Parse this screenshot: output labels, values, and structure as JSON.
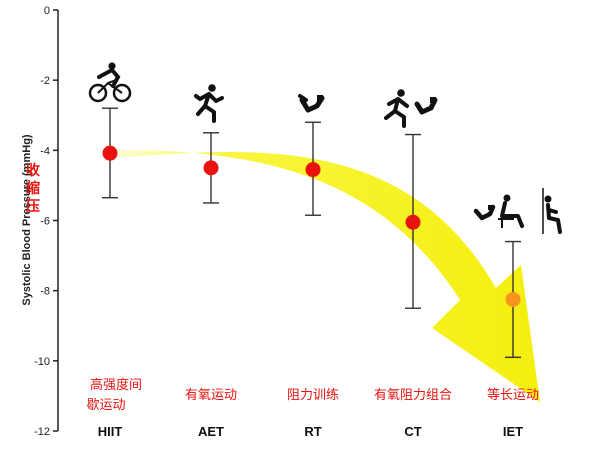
{
  "chart_data": {
    "type": "scatter",
    "ylabel": "Systolic Blood Pressure (mmHg)",
    "ylabel_cn": [
      "收",
      "缩",
      "压"
    ],
    "ylim": [
      -12,
      0
    ],
    "yticks": [
      0,
      -2,
      -4,
      -6,
      -8,
      -10,
      -12
    ],
    "categories": [
      "HIIT",
      "AET",
      "RT",
      "CT",
      "IET"
    ],
    "categories_cn": [
      [
        "高强度间",
        "歇运动"
      ],
      [
        "有氧运动"
      ],
      [
        "阻力训练"
      ],
      [
        "有氧阻力组合"
      ],
      [
        "等长运动"
      ]
    ],
    "values": [
      -4.08,
      -4.5,
      -4.55,
      -6.05,
      -8.25
    ],
    "error_low": [
      -5.35,
      -5.5,
      -5.85,
      -8.5,
      -9.9
    ],
    "error_high": [
      -2.8,
      -3.5,
      -3.2,
      -3.55,
      -6.6
    ],
    "point_colors": [
      "#e8130f",
      "#e8130f",
      "#e8130f",
      "#e8130f",
      "#f7941d"
    ],
    "trend_arrow_color": "#f6f200",
    "icons": [
      "cyclist-icon",
      "runner-icon",
      "resistance-icon",
      "runner-resistance-icon",
      "isometric-icon"
    ]
  }
}
